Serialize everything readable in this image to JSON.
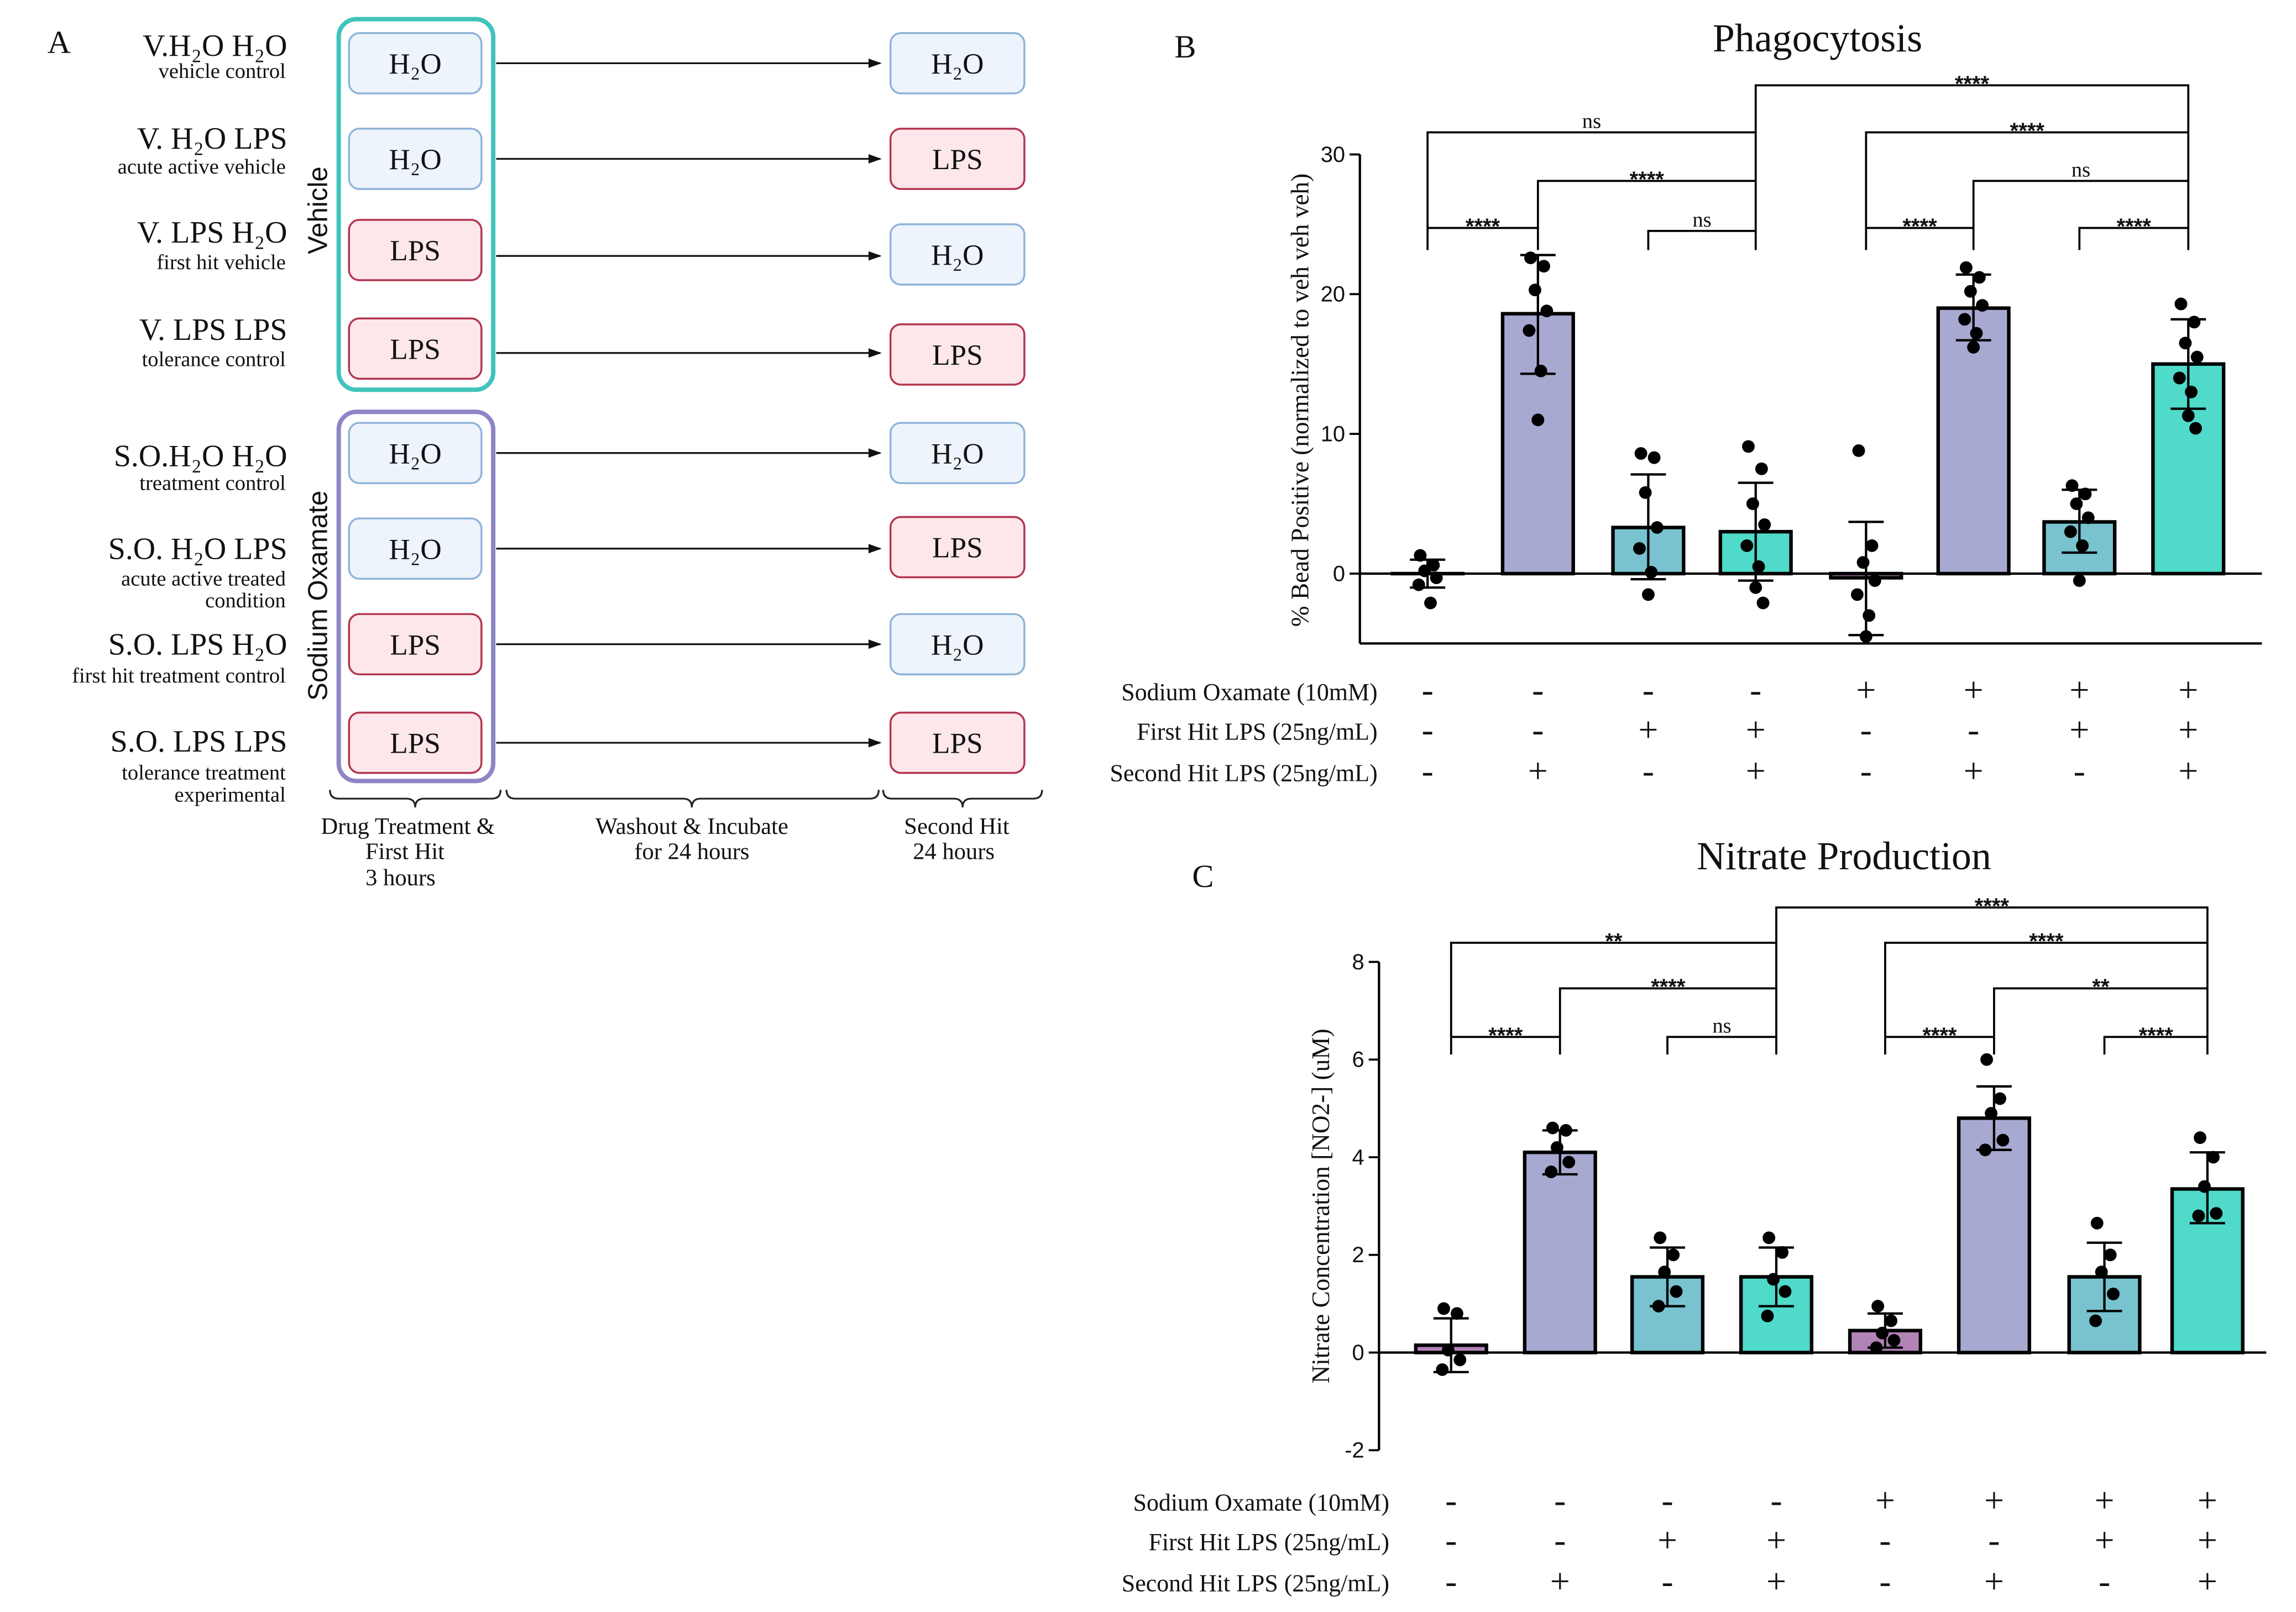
{
  "colors": {
    "water_fill": "#eef4fb",
    "water_stroke": "#8eb3da",
    "lps_fill": "#fde7eb",
    "lps_stroke": "#b3344f",
    "vehicle_frame": "#3fc4bb",
    "oxamate_frame": "#8d86c6",
    "axis": "#000000"
  },
  "figure": {
    "panel_a": {
      "letter": "A",
      "groups": [
        {
          "label": "Vehicle"
        },
        {
          "label": "Sodium Oxamate"
        }
      ],
      "rows": [
        {
          "name": "V.H₂O H₂O",
          "desc": [
            "vehicle control"
          ],
          "first": "H₂O",
          "second": "H₂O"
        },
        {
          "name": "V. H₂O LPS",
          "desc": [
            "acute active vehicle"
          ],
          "first": "H₂O",
          "second": "LPS"
        },
        {
          "name": "V. LPS H₂O",
          "desc": [
            "first hit vehicle"
          ],
          "first": "LPS",
          "second": "H₂O"
        },
        {
          "name": "V. LPS LPS",
          "desc": [
            "tolerance control"
          ],
          "first": "LPS",
          "second": "LPS"
        },
        {
          "name": "S.O.H₂O H₂O",
          "desc": [
            "treatment control"
          ],
          "first": "H₂O",
          "second": "H₂O"
        },
        {
          "name": "S.O. H₂O LPS",
          "desc": [
            "acute active treated",
            "condition"
          ],
          "first": "H₂O",
          "second": "LPS"
        },
        {
          "name": "S.O. LPS H₂O",
          "desc": [
            "first hit treatment control"
          ],
          "first": "LPS",
          "second": "H₂O"
        },
        {
          "name": "S.O. LPS LPS",
          "desc": [
            "tolerance treatment",
            "experimental"
          ],
          "first": "LPS",
          "second": "LPS"
        }
      ],
      "phases": [
        {
          "lines": [
            "Drug Treatment &",
            "First Hit",
            "3 hours"
          ]
        },
        {
          "lines": [
            "Washout & Incubate",
            "for 24 hours"
          ]
        },
        {
          "lines": [
            "Second Hit",
            "24 hours"
          ]
        }
      ]
    }
  },
  "chart_data": [
    {
      "panel": "B",
      "type": "bar",
      "title": "Phagocytosis",
      "xlabel": "",
      "ylabel": "% Bead Positive (normalized to veh veh veh)",
      "ylim": [
        -5,
        30
      ],
      "yticks": [
        0,
        10,
        20,
        30
      ],
      "conditions": [
        {
          "label": "Sodium Oxamate (10mM)",
          "signs": [
            "-",
            "-",
            "-",
            "-",
            "+",
            "+",
            "+",
            "+"
          ]
        },
        {
          "label": "First Hit LPS (25ng/mL)",
          "signs": [
            "-",
            "-",
            "+",
            "+",
            "-",
            "-",
            "+",
            "+"
          ]
        },
        {
          "label": "Second Hit LPS (25ng/mL)",
          "signs": [
            "-",
            "+",
            "-",
            "+",
            "-",
            "+",
            "-",
            "+"
          ]
        }
      ],
      "bars": [
        {
          "mean": 0.0,
          "error_low": -1.0,
          "error_high": 1.0,
          "points": [
            1.3,
            0.6,
            0.2,
            -0.3,
            -0.8,
            -2.1
          ],
          "color": "#b283b7"
        },
        {
          "mean": 18.6,
          "error_low": 14.3,
          "error_high": 22.8,
          "points": [
            22.6,
            22.0,
            20.3,
            18.8,
            17.4,
            14.5,
            11.0
          ],
          "color": "#a8a9d0"
        },
        {
          "mean": 3.3,
          "error_low": -0.4,
          "error_high": 7.1,
          "points": [
            8.6,
            8.3,
            5.8,
            3.3,
            1.8,
            0.1,
            -1.5
          ],
          "color": "#78c3cf"
        },
        {
          "mean": 3.0,
          "error_low": -0.5,
          "error_high": 6.5,
          "points": [
            9.1,
            7.5,
            5.0,
            3.5,
            2.0,
            0.5,
            -1.0,
            -2.1
          ],
          "color": "#4fdac9"
        },
        {
          "mean": -0.3,
          "error_low": -4.4,
          "error_high": 3.7,
          "points": [
            8.8,
            2.0,
            0.8,
            -0.5,
            -1.5,
            -3.0,
            -4.5
          ],
          "color": "#b283b7"
        },
        {
          "mean": 19.0,
          "error_low": 16.7,
          "error_high": 21.4,
          "points": [
            21.9,
            21.2,
            20.2,
            19.2,
            18.2,
            17.2,
            16.2
          ],
          "color": "#a8a9d0"
        },
        {
          "mean": 3.7,
          "error_low": 1.5,
          "error_high": 6.0,
          "points": [
            6.3,
            5.7,
            5.0,
            4.0,
            3.0,
            2.0,
            -0.5
          ],
          "color": "#78c3cf"
        },
        {
          "mean": 15.0,
          "error_low": 11.8,
          "error_high": 18.2,
          "points": [
            19.3,
            18.0,
            16.5,
            15.5,
            14.0,
            13.0,
            11.3,
            10.4
          ],
          "color": "#4fdac9"
        }
      ],
      "comparisons": [
        {
          "from": 0,
          "to": 1,
          "label": "****"
        },
        {
          "from": 0,
          "to": 3,
          "label": "ns"
        },
        {
          "from": 1,
          "to": 3,
          "label": "****"
        },
        {
          "from": 2,
          "to": 3,
          "label": "ns"
        },
        {
          "from": 3,
          "to": 7,
          "label": "****"
        },
        {
          "from": 4,
          "to": 7,
          "label": "****"
        },
        {
          "from": 5,
          "to": 7,
          "label": "ns"
        },
        {
          "from": 4,
          "to": 5,
          "label": "****"
        },
        {
          "from": 6,
          "to": 7,
          "label": "****"
        }
      ]
    },
    {
      "panel": "C",
      "type": "bar",
      "title": "Nitrate Production",
      "xlabel": "",
      "ylabel": "Nitrate Concentration [NO2-] (uM)",
      "ylim": [
        -2,
        8
      ],
      "yticks": [
        -2,
        0,
        2,
        4,
        6,
        8
      ],
      "conditions": [
        {
          "label": "Sodium Oxamate (10mM)",
          "signs": [
            "-",
            "-",
            "-",
            "-",
            "+",
            "+",
            "+",
            "+"
          ]
        },
        {
          "label": "First Hit LPS (25ng/mL)",
          "signs": [
            "-",
            "-",
            "+",
            "+",
            "-",
            "-",
            "+",
            "+"
          ]
        },
        {
          "label": "Second Hit LPS (25ng/mL)",
          "signs": [
            "-",
            "+",
            "-",
            "+",
            "-",
            "+",
            "-",
            "+"
          ]
        }
      ],
      "bars": [
        {
          "mean": 0.15,
          "error_low": -0.4,
          "error_high": 0.7,
          "points": [
            0.9,
            0.8,
            0.05,
            -0.15,
            -0.35
          ],
          "color": "#b283b7"
        },
        {
          "mean": 4.1,
          "error_low": 3.65,
          "error_high": 4.55,
          "points": [
            4.6,
            4.55,
            4.2,
            3.9,
            3.7
          ],
          "color": "#a8a9d0"
        },
        {
          "mean": 1.55,
          "error_low": 0.95,
          "error_high": 2.15,
          "points": [
            2.35,
            2.0,
            1.65,
            1.25,
            0.95
          ],
          "color": "#78c3cf"
        },
        {
          "mean": 1.55,
          "error_low": 0.95,
          "error_high": 2.15,
          "points": [
            2.35,
            2.05,
            1.5,
            1.25,
            0.75
          ],
          "color": "#4fdac9"
        },
        {
          "mean": 0.45,
          "error_low": 0.1,
          "error_high": 0.8,
          "points": [
            0.95,
            0.65,
            0.4,
            0.25,
            0.1
          ],
          "color": "#b283b7"
        },
        {
          "mean": 4.8,
          "error_low": 4.15,
          "error_high": 5.45,
          "points": [
            6.0,
            5.2,
            4.9,
            4.35,
            4.15
          ],
          "color": "#a8a9d0"
        },
        {
          "mean": 1.55,
          "error_low": 0.85,
          "error_high": 2.25,
          "points": [
            2.65,
            2.0,
            1.65,
            1.2,
            0.65
          ],
          "color": "#78c3cf"
        },
        {
          "mean": 3.35,
          "error_low": 2.65,
          "error_high": 4.1,
          "points": [
            4.4,
            4.0,
            3.4,
            2.85,
            2.8
          ],
          "color": "#4fdac9"
        }
      ],
      "comparisons": [
        {
          "from": 0,
          "to": 1,
          "label": "****"
        },
        {
          "from": 0,
          "to": 3,
          "label": "**"
        },
        {
          "from": 1,
          "to": 3,
          "label": "****"
        },
        {
          "from": 2,
          "to": 3,
          "label": "ns"
        },
        {
          "from": 3,
          "to": 7,
          "label": "****"
        },
        {
          "from": 4,
          "to": 7,
          "label": "****"
        },
        {
          "from": 5,
          "to": 7,
          "label": "**"
        },
        {
          "from": 4,
          "to": 5,
          "label": "****"
        },
        {
          "from": 6,
          "to": 7,
          "label": "****"
        }
      ]
    }
  ]
}
